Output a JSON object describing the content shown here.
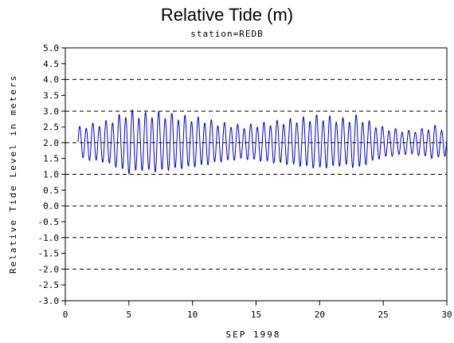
{
  "chart_data": {
    "type": "line",
    "title": "Relative Tide (m)",
    "subtitle": "station=REDB",
    "xlabel": "SEP 1998",
    "ylabel": "Relative Tide Level in meters",
    "xlim": [
      0,
      30
    ],
    "ylim": [
      -3.0,
      5.0
    ],
    "x_ticks": [
      "0",
      "5",
      "10",
      "15",
      "20",
      "25",
      "30"
    ],
    "y_ticks": [
      "5.0",
      "4.5",
      "4.0",
      "3.5",
      "3.0",
      "2.5",
      "2.0",
      "1.5",
      "1.0",
      "0.5",
      "0.0",
      "-0.5",
      "-1.0",
      "-1.5",
      "-2.0",
      "-2.5",
      "-3.0"
    ],
    "grid": "horizontal dashed at whole meters",
    "series": [
      {
        "color": "#0000cc",
        "x_start": 1.0,
        "x_end": 30.0,
        "mean_level": 2.0,
        "period_days": 0.5175,
        "envelope": [
          [
            1.0,
            0.45
          ],
          [
            2.0,
            0.55
          ],
          [
            3.0,
            0.6
          ],
          [
            4.0,
            0.75
          ],
          [
            5.0,
            0.95
          ],
          [
            6.0,
            0.85
          ],
          [
            7.0,
            0.9
          ],
          [
            8.0,
            0.85
          ],
          [
            9.0,
            0.8
          ],
          [
            10.0,
            0.75
          ],
          [
            11.0,
            0.7
          ],
          [
            12.0,
            0.6
          ],
          [
            13.0,
            0.55
          ],
          [
            14.0,
            0.5
          ],
          [
            15.0,
            0.55
          ],
          [
            16.0,
            0.6
          ],
          [
            17.0,
            0.65
          ],
          [
            18.0,
            0.7
          ],
          [
            19.0,
            0.75
          ],
          [
            20.0,
            0.8
          ],
          [
            21.0,
            0.75
          ],
          [
            22.0,
            0.7
          ],
          [
            23.0,
            0.8
          ],
          [
            24.0,
            0.6
          ],
          [
            25.0,
            0.45
          ],
          [
            26.0,
            0.4
          ],
          [
            27.0,
            0.35
          ],
          [
            28.0,
            0.4
          ],
          [
            29.0,
            0.5
          ],
          [
            30.0,
            0.4
          ]
        ]
      }
    ]
  }
}
